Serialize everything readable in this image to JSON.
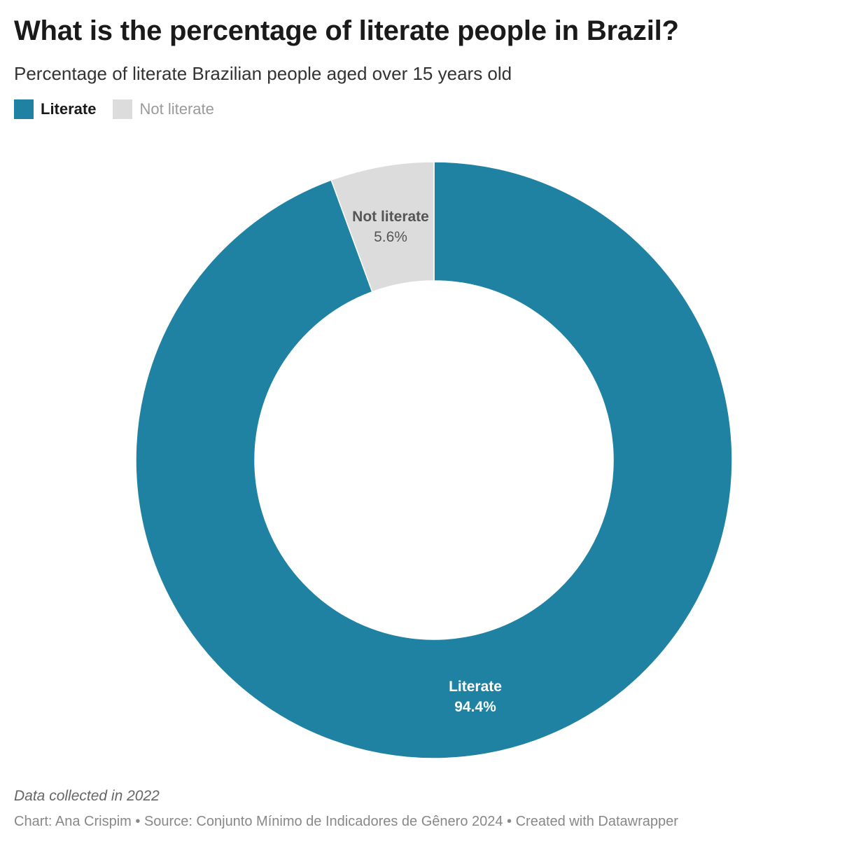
{
  "header": {
    "title": "What is the percentage of literate people in Brazil?",
    "subtitle": "Percentage of literate Brazilian people aged over 15 years old"
  },
  "legend": {
    "items": [
      {
        "label": "Literate",
        "color": "#1f82a3"
      },
      {
        "label": "Not literate",
        "color": "#dcdcdc"
      }
    ]
  },
  "chart_data": {
    "type": "pie",
    "variant": "donut",
    "categories": [
      "Literate",
      "Not literate"
    ],
    "values": [
      94.4,
      5.6
    ],
    "value_labels": [
      "94.4%",
      "5.6%"
    ],
    "colors": [
      "#1f82a3",
      "#dcdcdc"
    ],
    "title": "What is the percentage of literate people in Brazil?",
    "subtitle": "Percentage of literate Brazilian people aged over 15 years old",
    "legend_position": "top-left"
  },
  "footer": {
    "note": "Data collected in 2022",
    "credits": "Chart: Ana Crispim • Source: Conjunto Mínimo de Indicadores de Gênero 2024 • Created with Datawrapper"
  }
}
